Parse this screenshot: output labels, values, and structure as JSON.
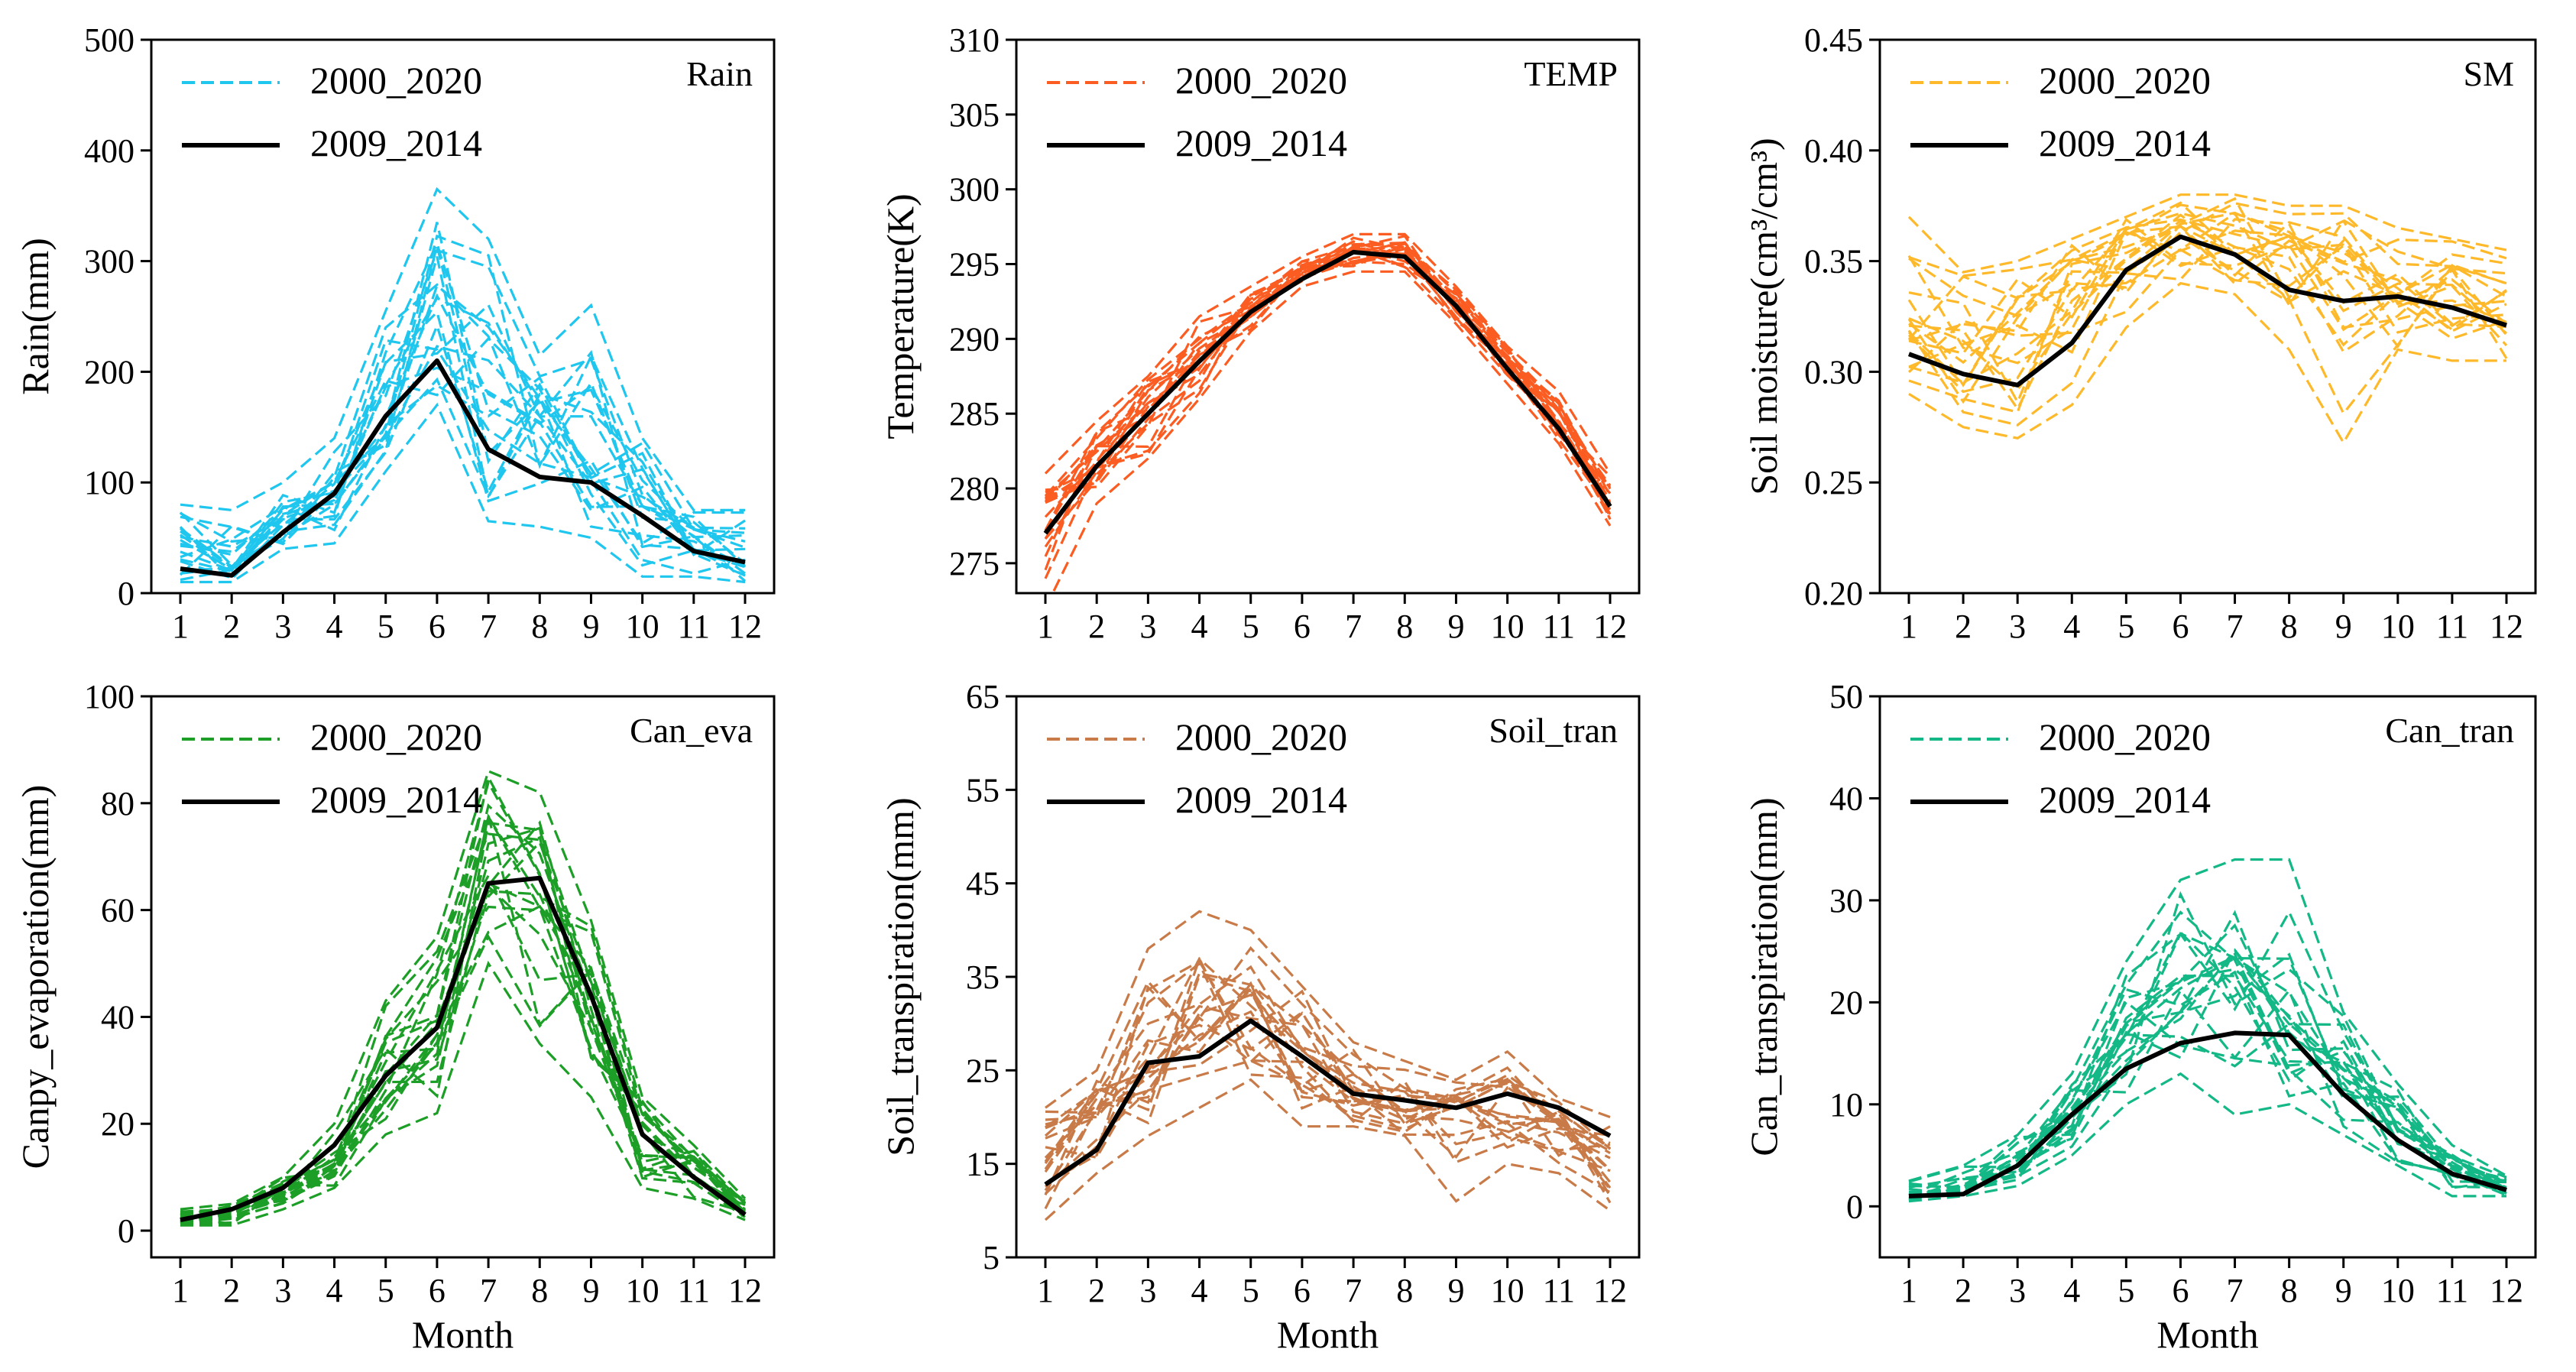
{
  "chart_data": [
    {
      "type": "line",
      "title": "Rain",
      "xlabel": "",
      "ylabel": "Rain(mm)",
      "color": "#1fc6ee",
      "x": [
        1,
        2,
        3,
        4,
        5,
        6,
        7,
        8,
        9,
        10,
        11,
        12
      ],
      "ylim": [
        0,
        500
      ],
      "yticks": [
        0,
        100,
        200,
        300,
        400,
        500
      ],
      "ytick_labels": [
        "0",
        "100",
        "200",
        "300",
        "400",
        "500"
      ],
      "legend": [
        "2000_2020",
        "2009_2014"
      ],
      "envelope": {
        "name": "2000_2020",
        "low": [
          10,
          10,
          40,
          45,
          110,
          170,
          65,
          60,
          50,
          15,
          15,
          10
        ],
        "high": [
          80,
          75,
          100,
          140,
          255,
          365,
          320,
          215,
          260,
          140,
          75,
          75
        ],
        "mean": [
          25,
          25,
          60,
          95,
          180,
          230,
          175,
          150,
          120,
          80,
          45,
          30
        ],
        "lines": 21
      },
      "series": [
        {
          "name": "2009_2014",
          "values": [
            22,
            16,
            55,
            90,
            160,
            210,
            130,
            105,
            100,
            70,
            38,
            28
          ]
        }
      ]
    },
    {
      "type": "line",
      "title": "TEMP",
      "xlabel": "",
      "ylabel": "Temperature(K)",
      "color": "#fb5c22",
      "x": [
        1,
        2,
        3,
        4,
        5,
        6,
        7,
        8,
        9,
        10,
        11,
        12
      ],
      "ylim": [
        273,
        310
      ],
      "yticks": [
        275,
        280,
        285,
        290,
        295,
        300,
        305,
        310
      ],
      "ytick_labels": [
        "275",
        "280",
        "285",
        "290",
        "295",
        "300",
        "305",
        "310"
      ],
      "legend": [
        "2000_2020",
        "2009_2014"
      ],
      "envelope": {
        "name": "2000_2020",
        "low": [
          272,
          279,
          282,
          286,
          290.5,
          293.5,
          294.5,
          294.5,
          291,
          287,
          283,
          277.5
        ],
        "high": [
          281,
          284.5,
          287.5,
          291.5,
          293.5,
          295.5,
          297,
          297,
          293.5,
          289.5,
          286.5,
          281
        ],
        "mean": [
          278.5,
          282,
          285.5,
          289,
          292,
          294.5,
          296,
          295.7,
          292.3,
          288.2,
          284,
          279
        ],
        "lines": 21
      },
      "series": [
        {
          "name": "2009_2014",
          "values": [
            277,
            281.5,
            285,
            288.5,
            291.8,
            294,
            295.8,
            295.5,
            292.2,
            288,
            284,
            278.8
          ]
        }
      ]
    },
    {
      "type": "line",
      "title": "SM",
      "xlabel": "",
      "ylabel": "Soil moisture(cm³/cm³)",
      "color": "#fdb92a",
      "x": [
        1,
        2,
        3,
        4,
        5,
        6,
        7,
        8,
        9,
        10,
        11,
        12
      ],
      "ylim": [
        0.2,
        0.45
      ],
      "yticks": [
        0.2,
        0.25,
        0.3,
        0.35,
        0.4,
        0.45
      ],
      "ytick_labels": [
        "0.20",
        "0.25",
        "0.30",
        "0.35",
        "0.40",
        "0.45"
      ],
      "legend": [
        "2000_2020",
        "2009_2014"
      ],
      "envelope": {
        "name": "2000_2020",
        "low": [
          0.29,
          0.275,
          0.27,
          0.285,
          0.32,
          0.34,
          0.335,
          0.31,
          0.268,
          0.31,
          0.305,
          0.305
        ],
        "high": [
          0.37,
          0.345,
          0.35,
          0.36,
          0.37,
          0.38,
          0.38,
          0.375,
          0.375,
          0.365,
          0.36,
          0.355
        ],
        "mean": [
          0.32,
          0.315,
          0.315,
          0.335,
          0.355,
          0.365,
          0.365,
          0.355,
          0.345,
          0.34,
          0.335,
          0.33
        ],
        "lines": 21
      },
      "series": [
        {
          "name": "2009_2014",
          "values": [
            0.308,
            0.299,
            0.294,
            0.313,
            0.346,
            0.361,
            0.353,
            0.337,
            0.332,
            0.334,
            0.329,
            0.321
          ]
        }
      ]
    },
    {
      "type": "line",
      "title": "Can_eva",
      "xlabel": "Month",
      "ylabel": "Canpy_evaporation(mm)",
      "color": "#1c9e27",
      "x": [
        1,
        2,
        3,
        4,
        5,
        6,
        7,
        8,
        9,
        10,
        11,
        12
      ],
      "ylim": [
        -5,
        100
      ],
      "yticks": [
        0,
        20,
        40,
        60,
        80,
        100
      ],
      "ytick_labels": [
        "0",
        "20",
        "40",
        "60",
        "80",
        "100"
      ],
      "legend": [
        "2000_2020",
        "2009_2014"
      ],
      "envelope": {
        "name": "2000_2020",
        "low": [
          1,
          1,
          4,
          8,
          18,
          22,
          50,
          35,
          25,
          8,
          6,
          2
        ],
        "high": [
          4,
          5,
          10,
          20,
          43,
          55,
          86,
          82,
          58,
          25,
          16,
          6
        ],
        "mean": [
          2,
          3,
          7,
          14,
          28,
          38,
          65,
          60,
          42,
          17,
          11,
          4
        ],
        "lines": 21
      },
      "series": [
        {
          "name": "2009_2014",
          "values": [
            2,
            4,
            8,
            16,
            29,
            38,
            65,
            66,
            44,
            18,
            10,
            3
          ]
        }
      ]
    },
    {
      "type": "line",
      "title": "Soil_tran",
      "xlabel": "Month",
      "ylabel": "Soil_transpiration(mm)",
      "color": "#c87b48",
      "x": [
        1,
        2,
        3,
        4,
        5,
        6,
        7,
        8,
        9,
        10,
        11,
        12
      ],
      "ylim": [
        5,
        65
      ],
      "yticks": [
        5,
        15,
        25,
        35,
        45,
        55,
        65
      ],
      "ytick_labels": [
        "5",
        "15",
        "25",
        "35",
        "45",
        "55",
        "65"
      ],
      "legend": [
        "2000_2020",
        "2009_2014"
      ],
      "envelope": {
        "name": "2000_2020",
        "low": [
          9,
          14,
          18,
          21,
          24,
          19,
          19,
          18,
          11,
          15,
          14,
          10
        ],
        "high": [
          21,
          25,
          38,
          42,
          40,
          34,
          28,
          26,
          24,
          27,
          22,
          20
        ],
        "mean": [
          16,
          20,
          26,
          32,
          32,
          27,
          22,
          21,
          20,
          21,
          19,
          16
        ],
        "lines": 21
      },
      "series": [
        {
          "name": "2009_2014",
          "values": [
            12.8,
            16.5,
            25.8,
            26.5,
            30.3,
            26.5,
            22.5,
            21.8,
            21,
            22.5,
            21,
            18
          ]
        }
      ]
    },
    {
      "type": "line",
      "title": "Can_tran",
      "xlabel": "Month",
      "ylabel": "Can_transpiration(mm)",
      "color": "#13b886",
      "x": [
        1,
        2,
        3,
        4,
        5,
        6,
        7,
        8,
        9,
        10,
        11,
        12
      ],
      "ylim": [
        -5,
        50
      ],
      "yticks": [
        0,
        10,
        20,
        30,
        40,
        50
      ],
      "ytick_labels": [
        "0",
        "10",
        "20",
        "30",
        "40",
        "50"
      ],
      "legend": [
        "2000_2020",
        "2009_2014"
      ],
      "envelope": {
        "name": "2000_2020",
        "low": [
          0.5,
          1,
          2,
          5,
          10,
          13,
          9,
          10,
          7,
          4,
          1,
          1
        ],
        "high": [
          2.5,
          4,
          7,
          13,
          24,
          32,
          34,
          34,
          19,
          12,
          6,
          3
        ],
        "mean": [
          1.2,
          2,
          4.5,
          9.5,
          17,
          22,
          22,
          21,
          13,
          8,
          3.5,
          2
        ],
        "lines": 21
      },
      "series": [
        {
          "name": "2009_2014",
          "values": [
            1,
            1.2,
            4,
            9,
            13.5,
            16,
            17,
            16.8,
            11,
            6.5,
            3.2,
            1.6
          ]
        }
      ]
    }
  ]
}
